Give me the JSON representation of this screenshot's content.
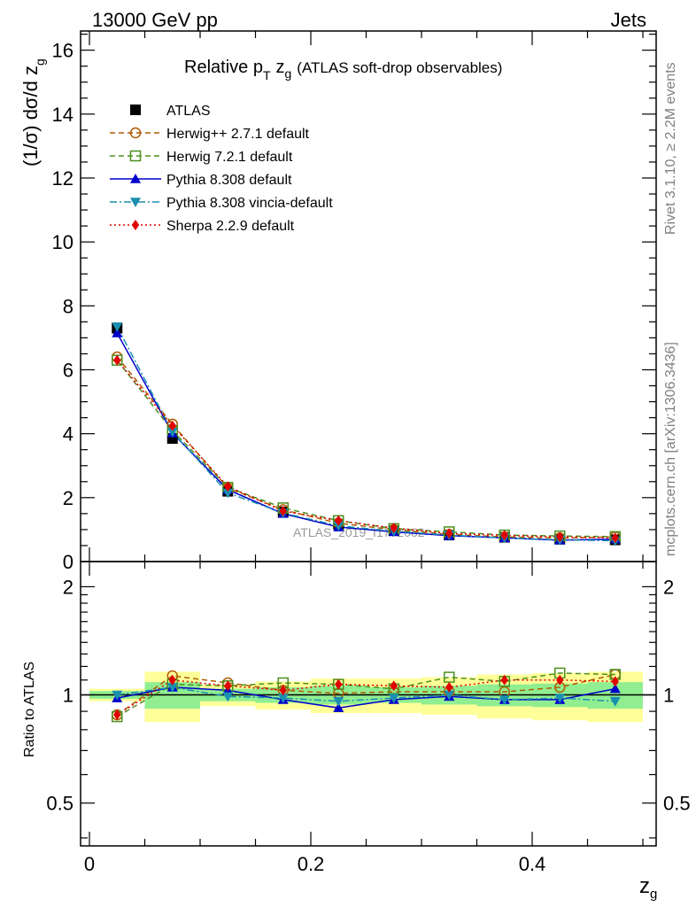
{
  "header": {
    "left": "13000 GeV pp",
    "right": "Jets"
  },
  "side": {
    "rivet": "Rivet 3.1.10, ≥ 2.2M events",
    "mcplots": "mcplots.cern.ch [arXiv:1306.3436]"
  },
  "watermark": "ATLAS_2019_I1772062",
  "chart_data": [
    {
      "type": "line",
      "title": "Relative p_T z_g (ATLAS soft-drop observables)",
      "title_main": "Relative p",
      "title_sub": "T",
      "title_var": "z",
      "title_var_sub": "g",
      "title_rest": "(ATLAS soft-drop observables)",
      "ylabel": "(1/σ) dσ/d z_g",
      "ylabel_main": "(1/σ) dσ/d z",
      "ylabel_sub": "g",
      "xlim": [
        -0.008,
        0.512
      ],
      "ylim": [
        0,
        16.6
      ],
      "yticks": [
        0,
        2,
        4,
        6,
        8,
        10,
        12,
        14,
        16
      ],
      "ytick_labels": [
        "0",
        "2",
        "4",
        "6",
        "8",
        "10",
        "12",
        "14",
        "16"
      ],
      "grid": false,
      "legend_position": "top-left",
      "x": [
        0.025,
        0.075,
        0.125,
        0.175,
        0.225,
        0.275,
        0.325,
        0.375,
        0.425,
        0.475
      ],
      "series": [
        {
          "name": "ATLAS",
          "color": "#000000",
          "marker": "square-filled",
          "line": "none",
          "values": [
            7.3,
            3.85,
            2.2,
            1.55,
            1.17,
            0.97,
            0.83,
            0.76,
            0.7,
            0.68
          ]
        },
        {
          "name": "Herwig++ 2.7.1 default",
          "color": "#b05a00",
          "marker": "circle-open",
          "line": "dashed",
          "values": [
            6.4,
            4.3,
            2.3,
            1.62,
            1.2,
            1.0,
            0.85,
            0.77,
            0.74,
            0.77
          ]
        },
        {
          "name": "Herwig 7.2.1 default",
          "color": "#4c8f1e",
          "marker": "square-open",
          "line": "dashed",
          "values": [
            6.3,
            4.1,
            2.32,
            1.68,
            1.28,
            1.03,
            0.93,
            0.83,
            0.8,
            0.78
          ]
        },
        {
          "name": "Pythia 8.308 default",
          "color": "#0000cc",
          "marker": "triangle-up",
          "line": "solid",
          "values": [
            7.15,
            4.02,
            2.25,
            1.5,
            1.08,
            0.93,
            0.81,
            0.74,
            0.67,
            0.7
          ]
        },
        {
          "name": "Pythia 8.308 vincia-default",
          "color": "#1a8fb0",
          "marker": "triangle-down",
          "line": "dashdot",
          "values": [
            7.35,
            4.05,
            2.15,
            1.52,
            1.12,
            0.95,
            0.83,
            0.74,
            0.68,
            0.65
          ]
        },
        {
          "name": "Sherpa 2.2.9 default",
          "color": "#e00000",
          "marker": "diamond-filled",
          "line": "dotted",
          "values": [
            6.3,
            4.25,
            2.35,
            1.58,
            1.28,
            1.05,
            0.88,
            0.82,
            0.77,
            0.74
          ]
        }
      ]
    },
    {
      "type": "line",
      "ylabel": "Ratio to ATLAS",
      "xlabel": "z_g",
      "xlabel_main": "z",
      "xlabel_sub": "g",
      "xlim": [
        -0.008,
        0.512
      ],
      "ylim": [
        0.38,
        2.35
      ],
      "ytick_labels": [
        "0.5",
        "1",
        "2"
      ],
      "yticks": [
        0.5,
        1,
        2
      ],
      "xticks": [
        0,
        0.2,
        0.4
      ],
      "xtick_labels": [
        "0",
        "0.2",
        "0.4"
      ],
      "log_y": true,
      "bins": [
        [
          0.0,
          0.05
        ],
        [
          0.05,
          0.1
        ],
        [
          0.1,
          0.15
        ],
        [
          0.15,
          0.2
        ],
        [
          0.2,
          0.25
        ],
        [
          0.25,
          0.3
        ],
        [
          0.3,
          0.35
        ],
        [
          0.35,
          0.4
        ],
        [
          0.4,
          0.45
        ],
        [
          0.45,
          0.5
        ]
      ],
      "band_stat": [
        0.025,
        0.085,
        0.04,
        0.05,
        0.06,
        0.05,
        0.06,
        0.07,
        0.075,
        0.085
      ],
      "band_total": [
        0.04,
        0.16,
        0.07,
        0.09,
        0.11,
        0.11,
        0.12,
        0.14,
        0.15,
        0.16
      ],
      "band_inner_color": "#90ee90",
      "band_outer_color": "#ffff99",
      "x": [
        0.025,
        0.075,
        0.125,
        0.175,
        0.225,
        0.275,
        0.325,
        0.375,
        0.425,
        0.475
      ],
      "series": [
        {
          "name": "Herwig++ 2.7.1 default",
          "color": "#b05a00",
          "marker": "circle-open",
          "values": [
            0.88,
            1.13,
            1.08,
            1.03,
            1.01,
            1.02,
            1.02,
            1.02,
            1.05,
            1.14
          ]
        },
        {
          "name": "Herwig 7.2.1 default",
          "color": "#4c8f1e",
          "marker": "square-open",
          "values": [
            0.87,
            1.07,
            1.06,
            1.08,
            1.07,
            1.04,
            1.12,
            1.09,
            1.15,
            1.14
          ]
        },
        {
          "name": "Pythia 8.308 default",
          "color": "#0000cc",
          "marker": "triangle-up",
          "values": [
            0.98,
            1.05,
            1.03,
            0.97,
            0.92,
            0.97,
            0.99,
            0.97,
            0.97,
            1.04
          ]
        },
        {
          "name": "Pythia 8.308 vincia-default",
          "color": "#1a8fb0",
          "marker": "triangle-down",
          "values": [
            1.0,
            1.05,
            0.99,
            0.98,
            0.96,
            0.98,
            1.0,
            0.97,
            0.98,
            0.96
          ]
        },
        {
          "name": "Sherpa 2.2.9 default",
          "color": "#e00000",
          "marker": "diamond-filled",
          "values": [
            0.88,
            1.1,
            1.06,
            1.03,
            1.07,
            1.06,
            1.05,
            1.1,
            1.1,
            1.09
          ]
        }
      ]
    }
  ]
}
